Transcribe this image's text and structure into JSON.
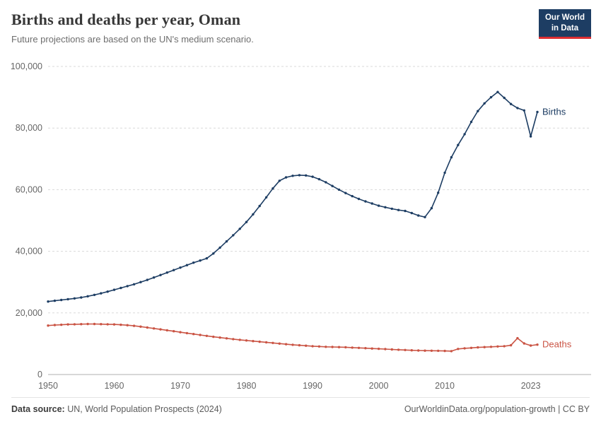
{
  "header": {
    "title": "Births and deaths per year, Oman",
    "subtitle": "Future projections are based on the UN's medium scenario.",
    "logo_line1": "Our World",
    "logo_line2": "in Data"
  },
  "footer": {
    "source_label": "Data source:",
    "source_text": " UN, World Population Prospects (2024)",
    "right_text": "OurWorldinData.org/population-growth | CC BY"
  },
  "colors": {
    "births": "#1d3d63",
    "deaths": "#ca5444",
    "gridline": "#dadada",
    "axis": "#b0b0b0",
    "tick_text": "#666666",
    "logo_bg": "#1d3d63",
    "logo_red": "#dc2e32"
  },
  "chart_data": {
    "type": "line",
    "title": "Births and deaths per year, Oman",
    "xlabel": "",
    "ylabel": "",
    "xlim": [
      1950,
      2024
    ],
    "ylim": [
      0,
      100000
    ],
    "x_ticks": [
      1950,
      1960,
      1970,
      1980,
      1990,
      2000,
      2010,
      2023
    ],
    "y_ticks": [
      0,
      20000,
      40000,
      60000,
      80000,
      100000
    ],
    "grid": "dashed-horizontal",
    "legend_position": "end-of-line-labels",
    "x": [
      1950,
      1951,
      1952,
      1953,
      1954,
      1955,
      1956,
      1957,
      1958,
      1959,
      1960,
      1961,
      1962,
      1963,
      1964,
      1965,
      1966,
      1967,
      1968,
      1969,
      1970,
      1971,
      1972,
      1973,
      1974,
      1975,
      1976,
      1977,
      1978,
      1979,
      1980,
      1981,
      1982,
      1983,
      1984,
      1985,
      1986,
      1987,
      1988,
      1989,
      1990,
      1991,
      1992,
      1993,
      1994,
      1995,
      1996,
      1997,
      1998,
      1999,
      2000,
      2001,
      2002,
      2003,
      2004,
      2005,
      2006,
      2007,
      2008,
      2009,
      2010,
      2011,
      2012,
      2013,
      2014,
      2015,
      2016,
      2017,
      2018,
      2019,
      2020,
      2021,
      2022,
      2023,
      2024
    ],
    "series": [
      {
        "name": "Births",
        "color": "#1d3d63",
        "values": [
          23700,
          23950,
          24200,
          24450,
          24700,
          25000,
          25400,
          25850,
          26350,
          26900,
          27500,
          28100,
          28700,
          29300,
          30000,
          30700,
          31500,
          32300,
          33100,
          33900,
          34700,
          35500,
          36300,
          37000,
          37700,
          39300,
          41200,
          43200,
          45200,
          47300,
          49500,
          52000,
          54700,
          57500,
          60400,
          62900,
          64000,
          64500,
          64700,
          64600,
          64200,
          63400,
          62400,
          61200,
          60000,
          58900,
          57900,
          57000,
          56200,
          55500,
          54800,
          54300,
          53800,
          53400,
          53100,
          52400,
          51600,
          51100,
          54000,
          59000,
          65500,
          70500,
          74500,
          78000,
          82000,
          85500,
          88000,
          90000,
          91700,
          89800,
          87800,
          86500,
          85700,
          77300,
          85200
        ]
      },
      {
        "name": "Deaths",
        "color": "#ca5444",
        "values": [
          15900,
          16050,
          16150,
          16250,
          16300,
          16350,
          16400,
          16400,
          16350,
          16300,
          16250,
          16150,
          16000,
          15800,
          15550,
          15250,
          14950,
          14650,
          14350,
          14050,
          13750,
          13450,
          13150,
          12850,
          12550,
          12250,
          12000,
          11750,
          11500,
          11250,
          11050,
          10850,
          10650,
          10450,
          10250,
          10050,
          9850,
          9650,
          9500,
          9350,
          9200,
          9100,
          9000,
          8950,
          8900,
          8850,
          8750,
          8650,
          8550,
          8450,
          8350,
          8250,
          8150,
          8050,
          7950,
          7870,
          7800,
          7750,
          7720,
          7700,
          7650,
          7600,
          8300,
          8500,
          8650,
          8800,
          8900,
          9000,
          9100,
          9200,
          9500,
          11800,
          10100,
          9400,
          9700
        ]
      }
    ]
  }
}
